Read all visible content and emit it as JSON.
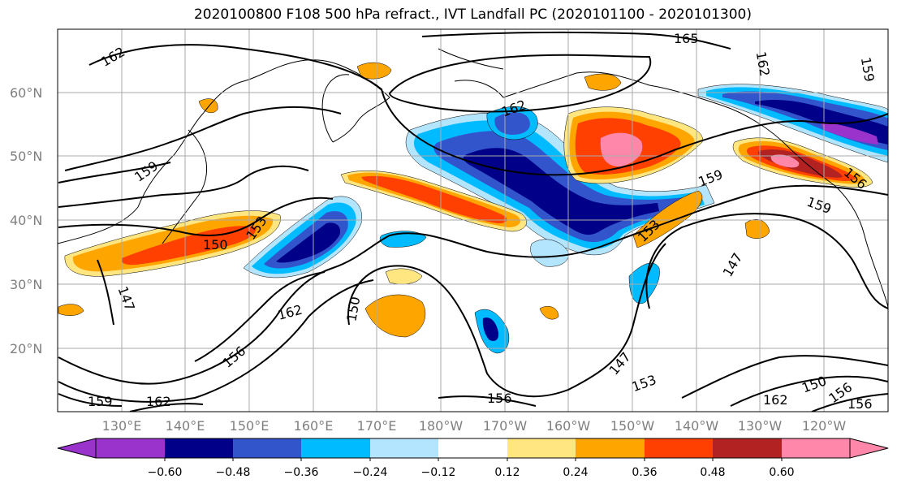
{
  "title": "2020100800 F108 500 hPa refract., IVT Landfall PC (2020101100 - 2020101300)",
  "lat_labels": [
    "60°N",
    "50°N",
    "40°N",
    "30°N",
    "20°N"
  ],
  "lon_labels": [
    "130°E",
    "140°E",
    "150°E",
    "160°E",
    "170°E",
    "180°W",
    "170°W",
    "160°W",
    "150°W",
    "140°W",
    "130°W",
    "120°W"
  ],
  "contour_labels": [
    "162",
    "165",
    "162",
    "159",
    "162",
    "159",
    "153",
    "150",
    "147",
    "162",
    "150",
    "156",
    "159",
    "162",
    "156",
    "147",
    "153",
    "153",
    "150",
    "156",
    "156",
    "147",
    "159",
    "156",
    "159",
    "162"
  ],
  "colorbar": {
    "ticks": [
      "−0.60",
      "−0.48",
      "−0.36",
      "−0.24",
      "−0.12",
      "0.12",
      "0.24",
      "0.36",
      "0.48",
      "0.60"
    ],
    "colors": [
      "#9933cc",
      "#000088",
      "#3355cc",
      "#00bbff",
      "#b3e5ff",
      "#ffffff",
      "#ffe680",
      "#ffa500",
      "#ff4000",
      "#b22222",
      "#ff88aa"
    ]
  },
  "colors": {
    "neg_strong": "#000088",
    "neg_mid": "#3355cc",
    "neg_light": "#00bbff",
    "neg_pale": "#b3e5ff",
    "pos_pale": "#ffe680",
    "pos_light": "#ffa500",
    "pos_mid": "#ff4000",
    "pos_strong": "#b22222",
    "pos_max": "#ff88aa",
    "coast": "#000000",
    "grid": "#aaaaaa"
  }
}
